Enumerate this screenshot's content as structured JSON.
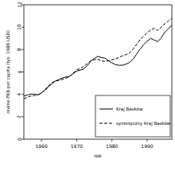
{
  "chart_data": {
    "type": "line",
    "x_label": "rok",
    "y_label": "realne PKB per capita (tys. 1986 USD)",
    "x": [
      1955,
      1956,
      1957,
      1958,
      1959,
      1960,
      1961,
      1962,
      1963,
      1964,
      1965,
      1966,
      1967,
      1968,
      1969,
      1970,
      1971,
      1972,
      1973,
      1974,
      1975,
      1976,
      1977,
      1978,
      1979,
      1980,
      1981,
      1982,
      1983,
      1984,
      1985,
      1986,
      1987,
      1988,
      1989,
      1990,
      1991,
      1992,
      1993,
      1994,
      1995,
      1996,
      1997
    ],
    "series": [
      {
        "name": "Kraj Basków",
        "color": "#000000",
        "line_style": "solid",
        "values": [
          3.85,
          3.95,
          4.03,
          4.02,
          3.96,
          4.14,
          4.38,
          4.69,
          4.96,
          5.2,
          5.34,
          5.47,
          5.55,
          5.61,
          5.85,
          6.08,
          6.17,
          6.28,
          6.56,
          6.98,
          7.2,
          7.4,
          7.29,
          7.24,
          7.0,
          6.82,
          6.66,
          6.6,
          6.6,
          6.7,
          6.85,
          7.15,
          7.6,
          8.05,
          8.45,
          8.75,
          9.0,
          8.85,
          8.7,
          9.05,
          9.55,
          9.85,
          10.2
        ]
      },
      {
        "name": "syntetyczny Kraj Basków",
        "color": "#000000",
        "line_style": "dashed",
        "values": [
          3.6,
          3.75,
          3.85,
          3.9,
          3.95,
          4.1,
          4.45,
          4.75,
          5.05,
          5.2,
          5.25,
          5.35,
          5.45,
          5.6,
          5.9,
          6.2,
          6.3,
          6.5,
          6.75,
          7.0,
          7.1,
          7.15,
          7.0,
          6.95,
          7.0,
          7.1,
          7.15,
          7.3,
          7.45,
          7.55,
          7.7,
          8.05,
          8.45,
          8.9,
          9.2,
          9.5,
          9.75,
          9.9,
          9.7,
          10.0,
          10.3,
          10.55,
          10.8
        ]
      }
    ],
    "xlim": [
      1955,
      1997
    ],
    "xticks": [
      1960,
      1970,
      1980,
      1990
    ],
    "ylim": [
      0,
      12
    ],
    "yticks": [
      0,
      2,
      4,
      6,
      8,
      10,
      12
    ],
    "grid": false,
    "legend": "lower right"
  }
}
